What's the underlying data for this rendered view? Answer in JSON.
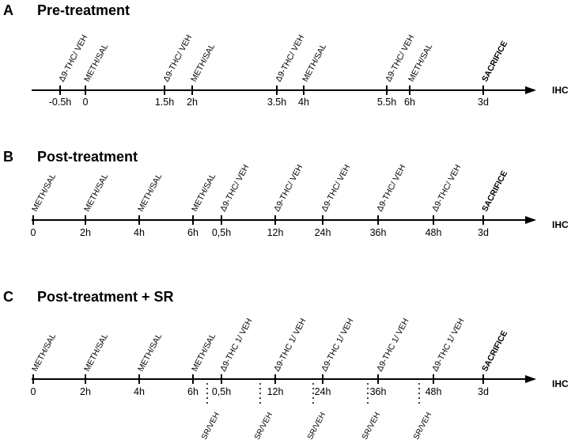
{
  "end_label": "IHC",
  "panels": [
    {
      "letter": "A",
      "title": "Pre-treatment",
      "events": [
        "Δ9-THC/ VEH",
        "METH/SAL",
        "Δ9-THC/ VEH",
        "METH/SAL",
        "Δ9-THC/ VEH",
        "METH/SAL",
        "Δ9-THC/ VEH",
        "METH/SAL",
        "SACRIFICE"
      ],
      "ticks": [
        "-0.5h",
        "0",
        "1.5h",
        "2h",
        "3.5h",
        "4h",
        "5.5h",
        "6h",
        "3d"
      ],
      "end_label": "IHC"
    },
    {
      "letter": "B",
      "title": "Post-treatment",
      "events": [
        "METH/SAL",
        "METH/SAL",
        "METH/SAL",
        "METH/SAL",
        "Δ9-THC/ VEH",
        "Δ9-THC/ VEH",
        "Δ9-THC/ VEH",
        "Δ9-THC/ VEH",
        "Δ9-THC/ VEH",
        "SACRIFICE"
      ],
      "ticks": [
        "0",
        "2h",
        "4h",
        "6h",
        "0,5h",
        "12h",
        "24h",
        "36h",
        "48h",
        "3d"
      ],
      "end_label": "IHC"
    },
    {
      "letter": "C",
      "title": "Post-treatment + SR",
      "events": [
        "METH/SAL",
        "METH/SAL",
        "METH/SAL",
        "METH/SAL",
        "Δ9-THC 1/ VEH",
        "Δ9-THC 1/ VEH",
        "Δ9-THC 1/ VEH",
        "Δ9-THC 1/ VEH",
        "Δ9-THC 1/ VEH",
        "SACRIFICE"
      ],
      "ticks": [
        "0",
        "2h",
        "4h",
        "6h",
        "0,5h",
        "12h",
        "24h",
        "36h",
        "48h",
        "3d"
      ],
      "sr_labels": [
        "SR/VEH",
        "SR/VEH",
        "SR/VEH",
        "SR/VEH",
        "SR/VEH"
      ],
      "end_label": "IHC"
    }
  ]
}
